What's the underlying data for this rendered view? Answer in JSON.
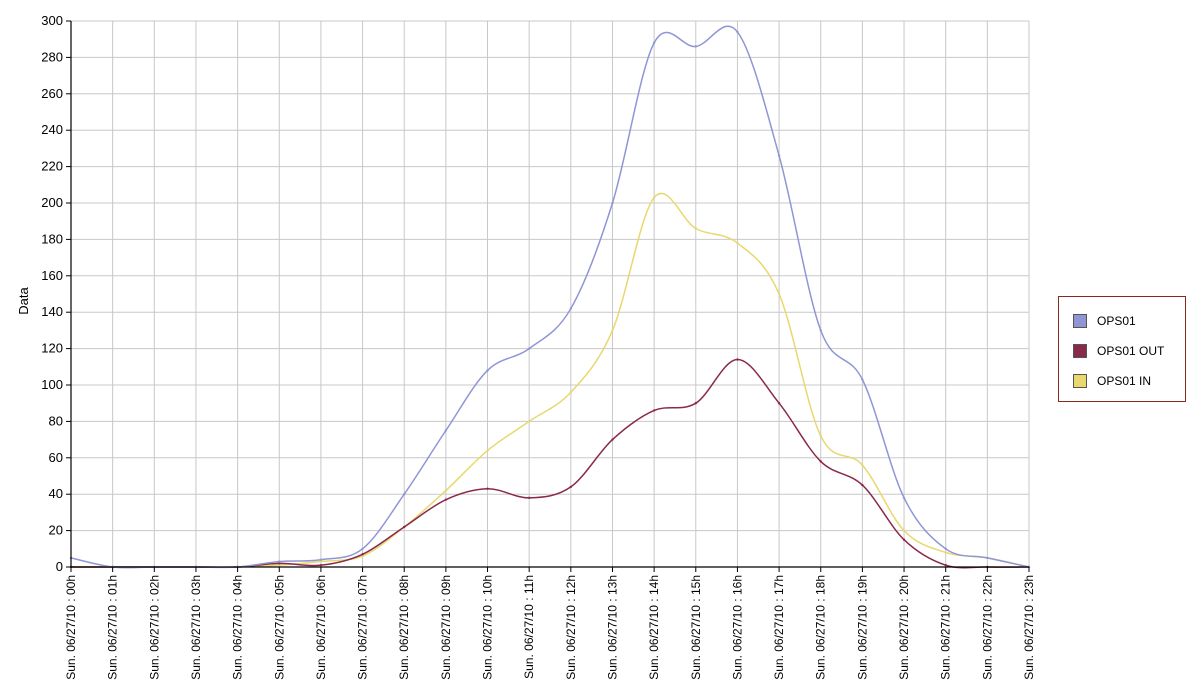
{
  "chart_data": {
    "type": "line",
    "title": "",
    "xlabel": "",
    "ylabel": "Data",
    "ylim": [
      0,
      300
    ],
    "y_ticks": [
      0,
      20,
      40,
      60,
      80,
      100,
      120,
      140,
      160,
      180,
      200,
      220,
      240,
      260,
      280,
      300
    ],
    "grid": true,
    "legend_position": "right",
    "x": [
      "Sun. 06/27/10 : 00h",
      "Sun. 06/27/10 : 01h",
      "Sun. 06/27/10 : 02h",
      "Sun. 06/27/10 : 03h",
      "Sun. 06/27/10 : 04h",
      "Sun. 06/27/10 : 05h",
      "Sun. 06/27/10 : 06h",
      "Sun. 06/27/10 : 07h",
      "Sun. 06/27/10 : 08h",
      "Sun. 06/27/10 : 09h",
      "Sun. 06/27/10 : 10h",
      "Sun. 06/27/10 : 11h",
      "Sun. 06/27/10 : 12h",
      "Sun. 06/27/10 : 13h",
      "Sun. 06/27/10 : 14h",
      "Sun. 06/27/10 : 15h",
      "Sun. 06/27/10 : 16h",
      "Sun. 06/27/10 : 17h",
      "Sun. 06/27/10 : 18h",
      "Sun. 06/27/10 : 19h",
      "Sun. 06/27/10 : 20h",
      "Sun. 06/27/10 : 21h",
      "Sun. 06/27/10 : 22h",
      "Sun. 06/27/10 : 23h"
    ],
    "series": [
      {
        "name": "OPS01",
        "color": "#8f96d4",
        "values": [
          5,
          0,
          0,
          0,
          0,
          3,
          4,
          10,
          40,
          75,
          108,
          120,
          142,
          200,
          288,
          286,
          294,
          226,
          130,
          103,
          38,
          10,
          5,
          0
        ]
      },
      {
        "name": "OPS01 OUT",
        "color": "#8a2a4a",
        "values": [
          0,
          0,
          0,
          0,
          0,
          2,
          1,
          7,
          22,
          37,
          43,
          38,
          44,
          70,
          86,
          90,
          114,
          90,
          58,
          45,
          15,
          1,
          0,
          0
        ]
      },
      {
        "name": "OPS01 IN",
        "color": "#e8d86e",
        "values": [
          0,
          0,
          0,
          0,
          0,
          1,
          3,
          6,
          22,
          42,
          64,
          80,
          96,
          130,
          203,
          186,
          178,
          150,
          72,
          56,
          20,
          8,
          5,
          0
        ]
      }
    ]
  }
}
